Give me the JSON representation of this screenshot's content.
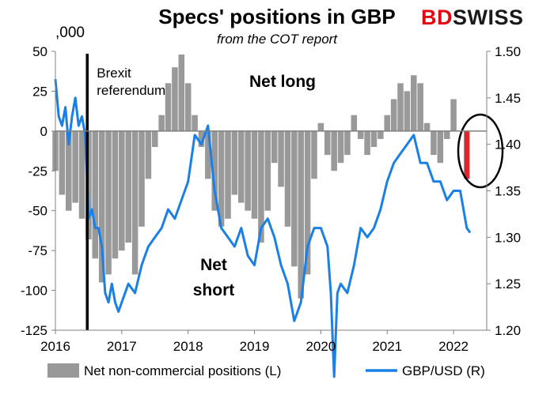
{
  "logo": {
    "prefix": "BD",
    "suffix": "SWISS"
  },
  "chart_data": {
    "type": "bar",
    "title": "Specs' positions in GBP",
    "subtitle": "from the COT report",
    "left_axis_unit": ",000",
    "x_ticks": [
      "2016",
      "2017",
      "2018",
      "2019",
      "2020",
      "2021",
      "2022"
    ],
    "x_range": [
      2016.0,
      2022.5
    ],
    "y_left": {
      "range": [
        -125,
        50
      ],
      "ticks": [
        50,
        25,
        0,
        -25,
        -50,
        -75,
        -100,
        -125
      ]
    },
    "y_right": {
      "range": [
        1.2,
        1.5
      ],
      "ticks": [
        "1.50",
        "1.45",
        "1.40",
        "1.35",
        "1.30",
        "1.25",
        "1.20"
      ]
    },
    "annotations": {
      "brexit": [
        "Brexit",
        "referendum"
      ],
      "brexit_x": 2016.48,
      "net_long": "Net long",
      "net_short": [
        "Net",
        "short"
      ]
    },
    "highlight_bar": {
      "x": 2022.2,
      "value": -30,
      "color": "#e8202a"
    },
    "legend_position": "bottom",
    "series": [
      {
        "name": "Net non-commercial positions (L)",
        "axis": "left",
        "kind": "bar",
        "color": "#999999",
        "x": [
          2016.0,
          2016.1,
          2016.2,
          2016.3,
          2016.4,
          2016.5,
          2016.6,
          2016.7,
          2016.8,
          2016.9,
          2017.0,
          2017.1,
          2017.2,
          2017.3,
          2017.4,
          2017.5,
          2017.6,
          2017.7,
          2017.8,
          2017.9,
          2018.0,
          2018.1,
          2018.2,
          2018.3,
          2018.4,
          2018.5,
          2018.6,
          2018.7,
          2018.8,
          2018.9,
          2019.0,
          2019.1,
          2019.2,
          2019.3,
          2019.4,
          2019.5,
          2019.6,
          2019.7,
          2019.8,
          2019.9,
          2020.0,
          2020.1,
          2020.2,
          2020.3,
          2020.4,
          2020.5,
          2020.6,
          2020.7,
          2020.8,
          2020.9,
          2021.0,
          2021.1,
          2021.2,
          2021.3,
          2021.4,
          2021.5,
          2021.6,
          2021.7,
          2021.8,
          2021.9,
          2022.0,
          2022.1,
          2022.2
        ],
        "values": [
          -25,
          -40,
          -50,
          -45,
          -55,
          -68,
          -80,
          -95,
          -90,
          -80,
          -75,
          -70,
          -90,
          -60,
          -30,
          -10,
          10,
          30,
          40,
          48,
          30,
          10,
          -10,
          -30,
          -50,
          -60,
          -55,
          -40,
          -45,
          -50,
          -55,
          -70,
          -50,
          -20,
          -35,
          -60,
          -85,
          -105,
          -90,
          -30,
          5,
          -15,
          -25,
          -20,
          -15,
          10,
          -5,
          -15,
          -10,
          -5,
          10,
          20,
          30,
          25,
          35,
          30,
          5,
          -15,
          -20,
          -5,
          20,
          0,
          -30
        ]
      },
      {
        "name": "GBP/USD (R)",
        "axis": "right",
        "kind": "line",
        "color": "#1a80e6",
        "x": [
          2016.0,
          2016.05,
          2016.1,
          2016.15,
          2016.2,
          2016.25,
          2016.3,
          2016.35,
          2016.4,
          2016.45,
          2016.48,
          2016.5,
          2016.55,
          2016.6,
          2016.65,
          2016.7,
          2016.75,
          2016.8,
          2016.85,
          2016.9,
          2016.95,
          2017.0,
          2017.1,
          2017.2,
          2017.3,
          2017.4,
          2017.5,
          2017.6,
          2017.7,
          2017.8,
          2017.9,
          2018.0,
          2018.1,
          2018.2,
          2018.3,
          2018.4,
          2018.5,
          2018.6,
          2018.7,
          2018.8,
          2018.9,
          2019.0,
          2019.1,
          2019.2,
          2019.3,
          2019.4,
          2019.5,
          2019.6,
          2019.7,
          2019.8,
          2019.9,
          2020.0,
          2020.1,
          2020.15,
          2020.2,
          2020.25,
          2020.3,
          2020.4,
          2020.5,
          2020.6,
          2020.7,
          2020.8,
          2020.9,
          2021.0,
          2021.1,
          2021.2,
          2021.3,
          2021.4,
          2021.5,
          2021.6,
          2021.7,
          2021.8,
          2021.9,
          2022.0,
          2022.1,
          2022.2,
          2022.25
        ],
        "values": [
          1.47,
          1.43,
          1.42,
          1.44,
          1.4,
          1.43,
          1.45,
          1.42,
          1.43,
          1.41,
          1.36,
          1.32,
          1.33,
          1.31,
          1.31,
          1.29,
          1.24,
          1.23,
          1.25,
          1.23,
          1.22,
          1.23,
          1.25,
          1.24,
          1.27,
          1.29,
          1.3,
          1.31,
          1.33,
          1.32,
          1.34,
          1.36,
          1.41,
          1.4,
          1.42,
          1.35,
          1.31,
          1.3,
          1.29,
          1.31,
          1.28,
          1.27,
          1.31,
          1.32,
          1.3,
          1.27,
          1.25,
          1.21,
          1.23,
          1.29,
          1.31,
          1.31,
          1.29,
          1.24,
          1.15,
          1.24,
          1.25,
          1.24,
          1.27,
          1.31,
          1.3,
          1.31,
          1.33,
          1.36,
          1.38,
          1.39,
          1.4,
          1.41,
          1.38,
          1.38,
          1.36,
          1.36,
          1.34,
          1.35,
          1.35,
          1.31,
          1.305
        ]
      }
    ]
  }
}
